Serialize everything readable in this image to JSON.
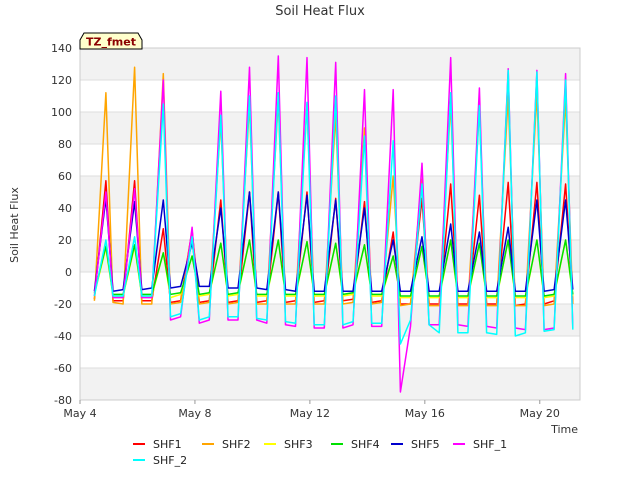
{
  "chart_data": {
    "type": "line",
    "title": "Soil Heat Flux",
    "xlabel": "Time",
    "ylabel": "Soil Heat Flux",
    "tag": "TZ_fmet",
    "x_ticks": [
      "May 4",
      "May 8",
      "May 12",
      "May 16",
      "May 20"
    ],
    "y_ticks": [
      -80,
      -60,
      -40,
      -20,
      0,
      20,
      40,
      60,
      80,
      100,
      120,
      140
    ],
    "ylim": [
      -80,
      140
    ],
    "grid": true,
    "legend_position": "bottom",
    "x_unit": "day of May",
    "x_values": [
      4.5,
      4.9,
      5.15,
      5.5,
      5.9,
      6.15,
      6.5,
      6.9,
      7.15,
      7.5,
      7.9,
      8.15,
      8.5,
      8.9,
      9.15,
      9.5,
      9.9,
      10.15,
      10.5,
      10.9,
      11.15,
      11.5,
      11.9,
      12.15,
      12.5,
      12.9,
      13.15,
      13.5,
      13.9,
      14.15,
      14.5,
      14.9,
      15.15,
      15.5,
      15.9,
      16.15,
      16.5,
      16.9,
      17.15,
      17.5,
      17.9,
      18.15,
      18.5,
      18.9,
      19.15,
      19.5,
      19.9,
      20.15,
      20.5,
      20.9,
      21.15
    ],
    "series": [
      {
        "name": "SHF1",
        "color": "#ff0000",
        "values": [
          -17,
          57,
          -18,
          -18,
          57,
          -18,
          -18,
          27,
          -19,
          -18,
          26,
          -19,
          -18,
          45,
          -19,
          -18,
          50,
          -19,
          -18,
          50,
          -19,
          -18,
          50,
          -19,
          -18,
          46,
          -18,
          -17,
          44,
          -19,
          -18,
          25,
          -20,
          -20,
          46,
          -20,
          -20,
          55,
          -20,
          -20,
          48,
          -20,
          -20,
          56,
          -21,
          -20,
          56,
          -20,
          -18,
          55,
          -19
        ]
      },
      {
        "name": "SHF2",
        "color": "#ffa500",
        "values": [
          -18,
          112,
          -19,
          -20,
          128,
          -20,
          -20,
          124,
          -20,
          -19,
          25,
          -20,
          -19,
          95,
          -20,
          -19,
          105,
          -20,
          -20,
          108,
          -20,
          -20,
          105,
          -20,
          -20,
          98,
          -20,
          -19,
          90,
          -20,
          -19,
          60,
          -21,
          -20,
          58,
          -21,
          -21,
          106,
          -21,
          -21,
          102,
          -21,
          -21,
          110,
          -21,
          -21,
          112,
          -21,
          -20,
          108,
          -20
        ]
      },
      {
        "name": "SHF3",
        "color": "#ffff00",
        "values": [
          -14,
          15,
          -15,
          -15,
          16,
          -15,
          -15,
          12,
          -16,
          -14,
          10,
          -15,
          -14,
          18,
          -15,
          -14,
          20,
          -15,
          -15,
          20,
          -15,
          -15,
          19,
          -15,
          -15,
          18,
          -15,
          -14,
          17,
          -15,
          -15,
          10,
          -16,
          -16,
          16,
          -16,
          -16,
          20,
          -16,
          -16,
          18,
          -16,
          -16,
          20,
          -16,
          -16,
          20,
          -16,
          -15,
          20,
          -15
        ]
      },
      {
        "name": "SHF4",
        "color": "#00e000",
        "values": [
          -13,
          16,
          -14,
          -14,
          17,
          -14,
          -14,
          12,
          -14,
          -13,
          10,
          -14,
          -13,
          18,
          -14,
          -13,
          20,
          -14,
          -14,
          20,
          -14,
          -14,
          19,
          -14,
          -14,
          18,
          -14,
          -13,
          17,
          -14,
          -14,
          10,
          -15,
          -15,
          16,
          -15,
          -15,
          20,
          -15,
          -15,
          18,
          -15,
          -15,
          20,
          -15,
          -15,
          20,
          -15,
          -14,
          20,
          -14
        ]
      },
      {
        "name": "SHF5",
        "color": "#0000cd",
        "values": [
          -12,
          46,
          -12,
          -11,
          44,
          -11,
          -10,
          45,
          -10,
          -9,
          18,
          -9,
          -9,
          40,
          -10,
          -10,
          50,
          -10,
          -11,
          50,
          -11,
          -12,
          48,
          -12,
          -12,
          45,
          -12,
          -12,
          40,
          -12,
          -12,
          20,
          -12,
          -12,
          22,
          -12,
          -12,
          30,
          -12,
          -12,
          25,
          -12,
          -12,
          28,
          -12,
          -12,
          45,
          -12,
          -11,
          45,
          -11
        ]
      },
      {
        "name": "SHF_1",
        "color": "#ff00ff",
        "values": [
          -15,
          50,
          -16,
          -16,
          52,
          -16,
          -16,
          120,
          -30,
          -28,
          28,
          -32,
          -30,
          113,
          -30,
          -30,
          128,
          -30,
          -32,
          135,
          -33,
          -34,
          134,
          -35,
          -35,
          131,
          -35,
          -33,
          114,
          -34,
          -34,
          114,
          -75,
          -34,
          68,
          -33,
          -33,
          134,
          -33,
          -34,
          115,
          -34,
          -35,
          127,
          -35,
          -36,
          126,
          -36,
          -35,
          124,
          -35
        ]
      },
      {
        "name": "SHF_2",
        "color": "#00ffff",
        "values": [
          -15,
          20,
          -15,
          -15,
          22,
          -15,
          -15,
          105,
          -28,
          -26,
          22,
          -30,
          -28,
          98,
          -28,
          -28,
          110,
          -29,
          -30,
          112,
          -31,
          -32,
          106,
          -33,
          -33,
          110,
          -33,
          -31,
          85,
          -32,
          -32,
          82,
          -45,
          -30,
          55,
          -33,
          -38,
          112,
          -38,
          -38,
          104,
          -38,
          -39,
          126,
          -40,
          -38,
          125,
          -37,
          -36,
          120,
          -36
        ]
      }
    ]
  }
}
